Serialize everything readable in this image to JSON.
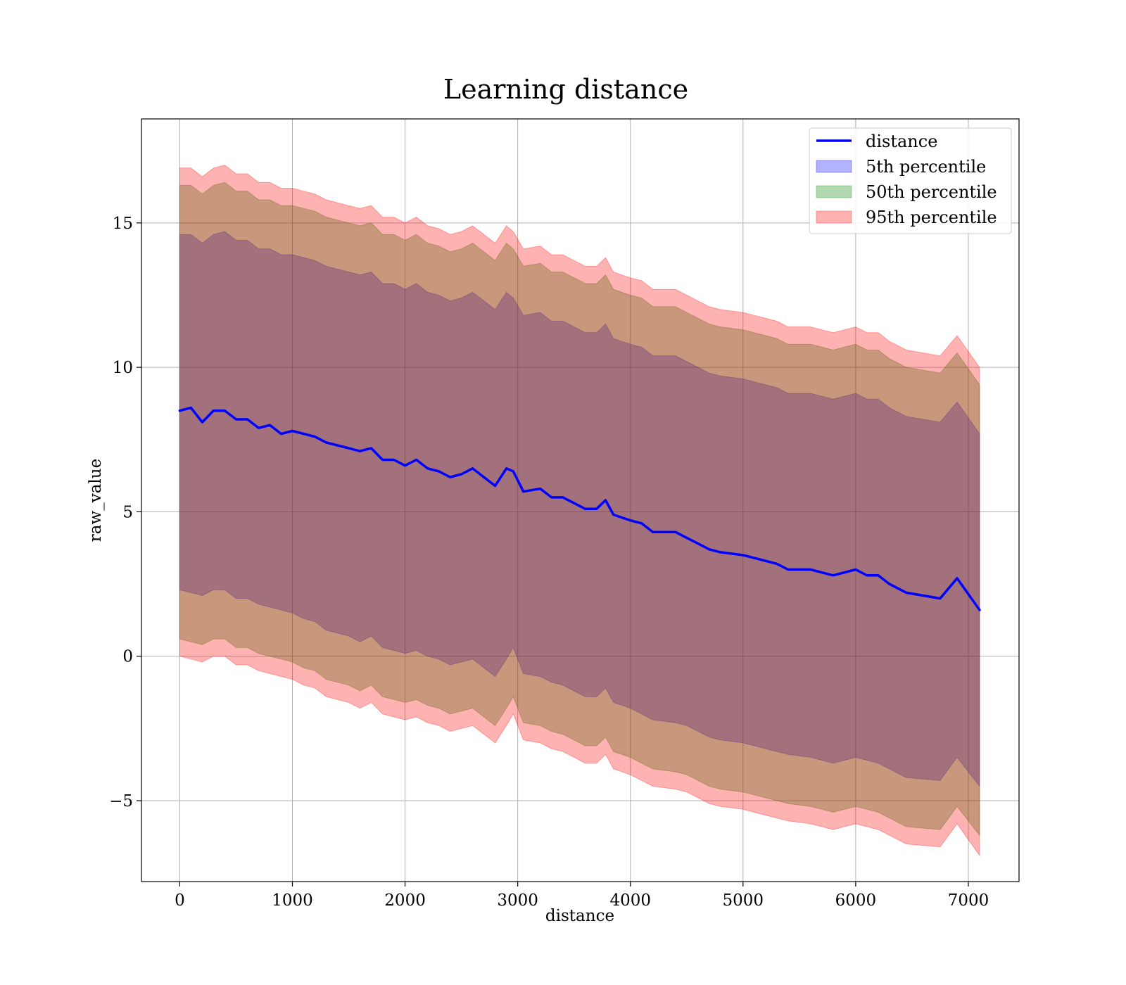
{
  "chart_data": {
    "type": "area",
    "title": "Learning distance",
    "xlabel": "distance",
    "ylabel": "raw_value",
    "xlim": [
      -340,
      7450
    ],
    "ylim": [
      -7.8,
      18.6
    ],
    "xticks": [
      0,
      1000,
      2000,
      3000,
      4000,
      5000,
      6000,
      7000
    ],
    "yticks": [
      -5,
      0,
      5,
      10,
      15
    ],
    "ytick_labels": [
      "−5",
      "0",
      "5",
      "10",
      "15"
    ],
    "grid": true,
    "legend_position": "top-right",
    "colors": {
      "line": "#0000ff",
      "p5": "#0000ff",
      "p50": "#008000",
      "p95": "#ff0000"
    },
    "x": [
      0,
      100,
      200,
      300,
      400,
      500,
      600,
      700,
      800,
      900,
      1000,
      1100,
      1200,
      1300,
      1400,
      1500,
      1600,
      1700,
      1800,
      1900,
      2000,
      2100,
      2200,
      2300,
      2400,
      2500,
      2600,
      2700,
      2800,
      2900,
      2960,
      3050,
      3200,
      3300,
      3400,
      3500,
      3600,
      3700,
      3780,
      3850,
      4000,
      4100,
      4200,
      4400,
      4500,
      4600,
      4700,
      4800,
      5000,
      5100,
      5200,
      5300,
      5400,
      5600,
      5700,
      5800,
      6000,
      6100,
      6200,
      6300,
      6450,
      6750,
      6900,
      7100
    ],
    "series": [
      {
        "name": "distance",
        "kind": "line",
        "values": [
          8.5,
          8.6,
          8.1,
          8.5,
          8.5,
          8.2,
          8.2,
          7.9,
          8.0,
          7.7,
          7.8,
          7.7,
          7.6,
          7.4,
          7.3,
          7.2,
          7.1,
          7.2,
          6.8,
          6.8,
          6.6,
          6.8,
          6.5,
          6.4,
          6.2,
          6.3,
          6.5,
          6.2,
          5.9,
          6.5,
          6.4,
          5.7,
          5.8,
          5.5,
          5.5,
          5.3,
          5.1,
          5.1,
          5.4,
          4.9,
          4.7,
          4.6,
          4.3,
          4.3,
          4.1,
          3.9,
          3.7,
          3.6,
          3.5,
          3.4,
          3.3,
          3.2,
          3.0,
          3.0,
          2.9,
          2.8,
          3.0,
          2.8,
          2.8,
          2.5,
          2.2,
          2.0,
          2.7,
          1.6
        ]
      },
      {
        "name": "5th percentile",
        "kind": "band",
        "lower": [
          2.3,
          2.2,
          2.1,
          2.3,
          2.3,
          2.0,
          2.0,
          1.8,
          1.7,
          1.6,
          1.5,
          1.3,
          1.2,
          0.9,
          0.8,
          0.7,
          0.5,
          0.7,
          0.3,
          0.2,
          0.1,
          0.2,
          0.0,
          -0.1,
          -0.3,
          -0.2,
          -0.1,
          -0.4,
          -0.7,
          -0.1,
          0.3,
          -0.6,
          -0.7,
          -0.9,
          -1.0,
          -1.2,
          -1.4,
          -1.4,
          -1.1,
          -1.6,
          -1.8,
          -2.0,
          -2.2,
          -2.3,
          -2.4,
          -2.6,
          -2.8,
          -2.9,
          -3.0,
          -3.1,
          -3.2,
          -3.3,
          -3.4,
          -3.5,
          -3.6,
          -3.7,
          -3.5,
          -3.6,
          -3.7,
          -3.9,
          -4.2,
          -4.3,
          -3.5,
          -4.5
        ],
        "upper": [
          14.6,
          14.6,
          14.3,
          14.6,
          14.7,
          14.4,
          14.4,
          14.1,
          14.1,
          13.9,
          13.9,
          13.8,
          13.7,
          13.5,
          13.4,
          13.3,
          13.2,
          13.3,
          12.9,
          12.9,
          12.7,
          12.9,
          12.6,
          12.5,
          12.3,
          12.4,
          12.6,
          12.3,
          12.0,
          12.6,
          12.4,
          11.8,
          11.9,
          11.6,
          11.6,
          11.4,
          11.2,
          11.2,
          11.5,
          11.0,
          10.8,
          10.7,
          10.4,
          10.4,
          10.2,
          10.0,
          9.8,
          9.7,
          9.6,
          9.5,
          9.4,
          9.3,
          9.1,
          9.1,
          9.0,
          8.9,
          9.1,
          8.9,
          8.9,
          8.6,
          8.3,
          8.1,
          8.8,
          7.7
        ]
      },
      {
        "name": "50th percentile",
        "kind": "band",
        "lower": [
          0.6,
          0.5,
          0.4,
          0.6,
          0.6,
          0.3,
          0.3,
          0.1,
          0.0,
          -0.1,
          -0.2,
          -0.4,
          -0.5,
          -0.8,
          -0.9,
          -1.0,
          -1.2,
          -1.0,
          -1.4,
          -1.5,
          -1.6,
          -1.5,
          -1.7,
          -1.8,
          -2.0,
          -1.9,
          -1.8,
          -2.1,
          -2.4,
          -1.8,
          -1.4,
          -2.3,
          -2.4,
          -2.6,
          -2.7,
          -2.9,
          -3.1,
          -3.1,
          -2.8,
          -3.3,
          -3.5,
          -3.7,
          -3.9,
          -4.0,
          -4.1,
          -4.3,
          -4.5,
          -4.6,
          -4.7,
          -4.8,
          -4.9,
          -5.0,
          -5.1,
          -5.2,
          -5.3,
          -5.4,
          -5.2,
          -5.3,
          -5.4,
          -5.6,
          -5.9,
          -6.0,
          -5.2,
          -6.2
        ],
        "upper": [
          16.3,
          16.3,
          16.0,
          16.3,
          16.4,
          16.1,
          16.1,
          15.8,
          15.8,
          15.6,
          15.6,
          15.5,
          15.4,
          15.2,
          15.1,
          15.0,
          14.9,
          15.0,
          14.6,
          14.6,
          14.4,
          14.6,
          14.3,
          14.2,
          14.0,
          14.1,
          14.3,
          14.0,
          13.7,
          14.3,
          14.1,
          13.5,
          13.6,
          13.3,
          13.3,
          13.1,
          12.9,
          12.9,
          13.2,
          12.7,
          12.5,
          12.4,
          12.1,
          12.1,
          11.9,
          11.7,
          11.5,
          11.4,
          11.3,
          11.2,
          11.1,
          11.0,
          10.8,
          10.8,
          10.7,
          10.6,
          10.8,
          10.6,
          10.6,
          10.3,
          10.0,
          9.8,
          10.5,
          9.4
        ]
      },
      {
        "name": "95th percentile",
        "kind": "band",
        "lower": [
          0.0,
          -0.1,
          -0.2,
          0.0,
          0.0,
          -0.3,
          -0.3,
          -0.5,
          -0.6,
          -0.7,
          -0.8,
          -1.0,
          -1.1,
          -1.4,
          -1.5,
          -1.6,
          -1.8,
          -1.6,
          -2.0,
          -2.1,
          -2.2,
          -2.1,
          -2.3,
          -2.4,
          -2.6,
          -2.5,
          -2.4,
          -2.7,
          -3.0,
          -2.4,
          -2.0,
          -2.9,
          -3.0,
          -3.2,
          -3.3,
          -3.5,
          -3.7,
          -3.7,
          -3.4,
          -3.9,
          -4.1,
          -4.3,
          -4.5,
          -4.6,
          -4.7,
          -4.9,
          -5.1,
          -5.2,
          -5.3,
          -5.4,
          -5.5,
          -5.6,
          -5.7,
          -5.8,
          -5.9,
          -6.0,
          -5.8,
          -5.9,
          -6.0,
          -6.2,
          -6.5,
          -6.6,
          -5.8,
          -6.9
        ],
        "upper": [
          16.9,
          16.9,
          16.6,
          16.9,
          17.0,
          16.7,
          16.7,
          16.4,
          16.4,
          16.2,
          16.2,
          16.1,
          16.0,
          15.8,
          15.7,
          15.6,
          15.5,
          15.6,
          15.2,
          15.2,
          15.0,
          15.2,
          14.9,
          14.8,
          14.6,
          14.7,
          14.9,
          14.6,
          14.3,
          14.9,
          14.7,
          14.1,
          14.2,
          13.9,
          13.9,
          13.7,
          13.5,
          13.5,
          13.8,
          13.3,
          13.1,
          13.0,
          12.7,
          12.7,
          12.5,
          12.3,
          12.1,
          12.0,
          11.9,
          11.8,
          11.7,
          11.6,
          11.4,
          11.4,
          11.3,
          11.2,
          11.4,
          11.2,
          11.2,
          10.9,
          10.6,
          10.4,
          11.1,
          10.0
        ]
      }
    ]
  }
}
